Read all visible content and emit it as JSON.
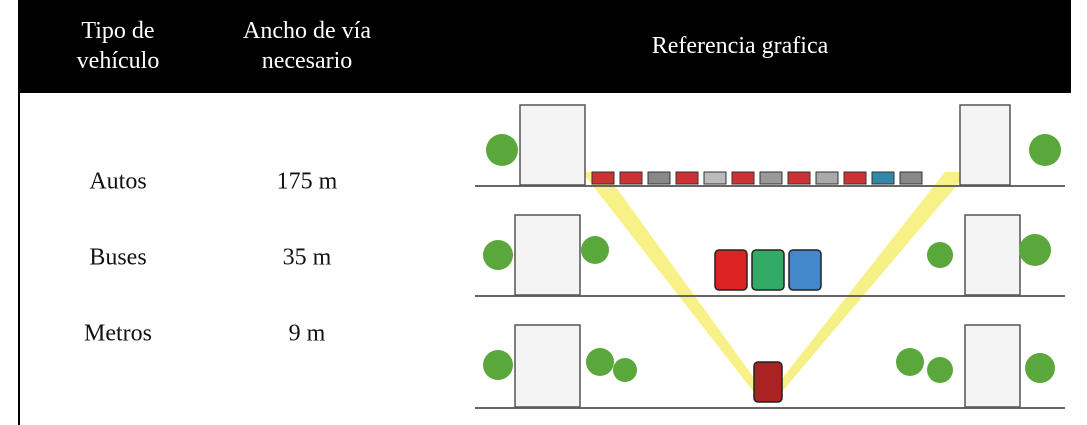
{
  "table": {
    "headers": [
      "Tipo de vehículo",
      "Ancho de vía necesario",
      "Referencia grafica"
    ],
    "rows": [
      [
        "Autos",
        "175 m"
      ],
      [
        "Buses",
        "35 m"
      ],
      [
        "Metros",
        "9 m"
      ]
    ]
  }
}
